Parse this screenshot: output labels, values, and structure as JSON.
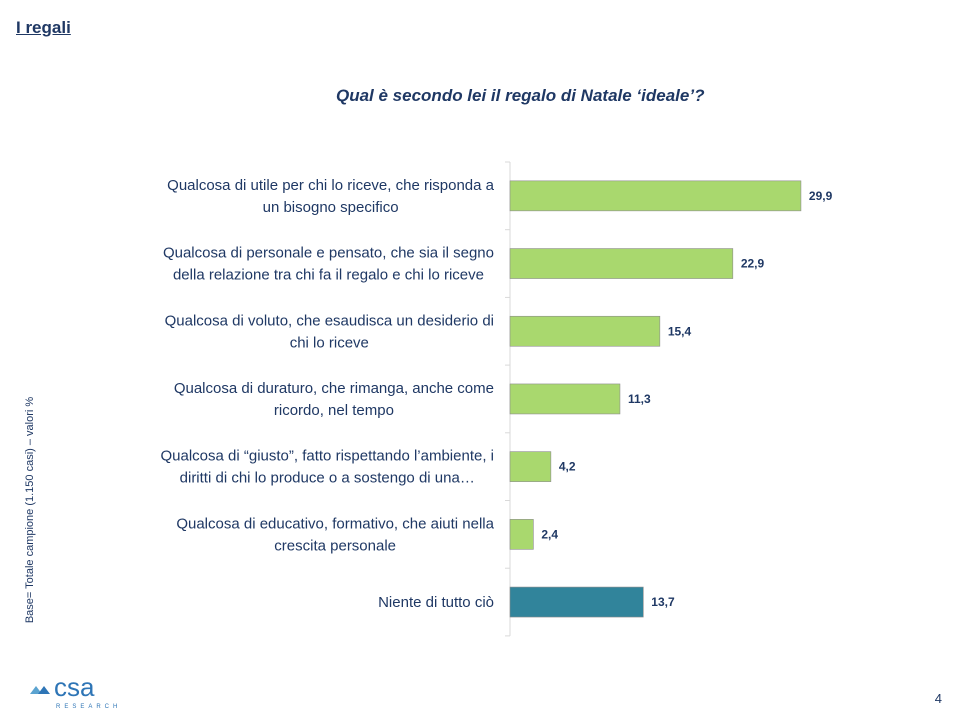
{
  "header": {
    "section_title": "I regali",
    "question": "Qual è secondo lei il regalo di Natale ‘ideale’?"
  },
  "side_note": "Base= Totale campione (1.150 casi) – valori %",
  "footer": {
    "logo_text": "csa",
    "logo_subtext": "RESEARCH",
    "page_number": "4"
  },
  "colors": {
    "bar_primary": "#a9d86e",
    "bar_secondary": "#31849b",
    "text": "#1f3864",
    "axis": "#d9d9d9"
  },
  "chart_data": {
    "type": "bar",
    "orientation": "horizontal",
    "title": "Qual è secondo lei il regalo di Natale ‘ideale’?",
    "xlabel": "",
    "ylabel": "",
    "xlim": [
      0,
      50
    ],
    "categories": [
      [
        "Qualcosa di utile per chi lo riceve, che risponda a",
        "un bisogno specifico"
      ],
      [
        "Qualcosa di personale e pensato, che sia il segno",
        "della relazione tra chi fa il regalo e chi lo riceve"
      ],
      [
        "Qualcosa di voluto, che esaudisca un desiderio di",
        "chi lo riceve"
      ],
      [
        "Qualcosa di duraturo, che rimanga, anche come",
        "ricordo, nel tempo"
      ],
      [
        "Qualcosa di “giusto”, fatto rispettando l’ambiente, i",
        "diritti di chi lo produce o a sostengo di una…"
      ],
      [
        "Qualcosa di educativo, formativo, che aiuti nella",
        "crescita personale"
      ],
      [
        "Niente di tutto ciò"
      ]
    ],
    "values": [
      29.9,
      22.9,
      15.4,
      11.3,
      4.2,
      2.4,
      13.7
    ],
    "value_labels": [
      "29,9",
      "22,9",
      "15,4",
      "11,3",
      "4,2",
      "2,4",
      "13,7"
    ],
    "bar_colors": [
      "#a9d86e",
      "#a9d86e",
      "#a9d86e",
      "#a9d86e",
      "#a9d86e",
      "#a9d86e",
      "#31849b"
    ]
  }
}
